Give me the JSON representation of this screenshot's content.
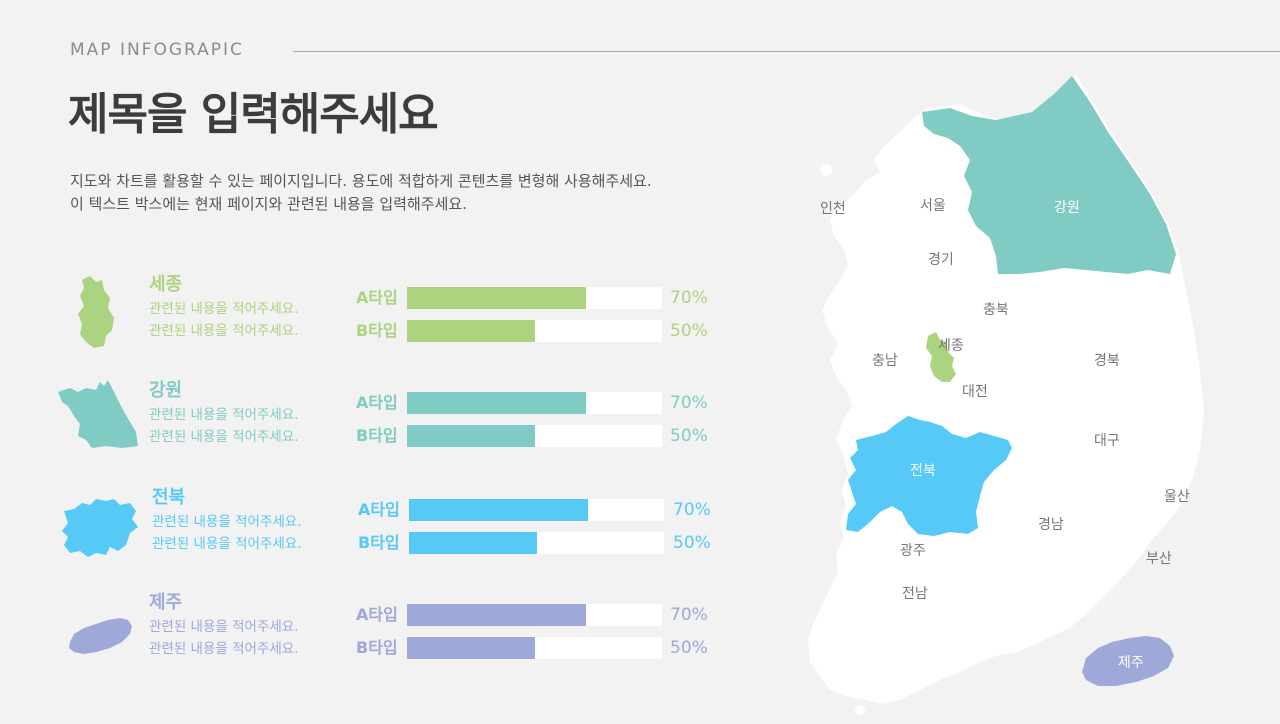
{
  "header": {
    "label": "MAP INFOGRAPIC",
    "title": "제목을 입력해주세요",
    "description_1": "지도와 차트를 활용할 수 있는 페이지입니다. 용도에 적합하게 콘텐츠를 변형해 사용해주세요.",
    "description_2": "이 텍스트 박스에는 현재 페이지와 관련된 내용을 입력해주세요."
  },
  "regions": [
    {
      "name": "세종",
      "color": "#acd37f",
      "line1": "관련된 내용을 적어주세요.",
      "line2": "관련된 내용을 적어주세요.",
      "bars": [
        {
          "label": "A타입",
          "value": 70,
          "pct": "70%"
        },
        {
          "label": "B타입",
          "value": 50,
          "pct": "50%"
        }
      ]
    },
    {
      "name": "강원",
      "color": "#80cbc3",
      "line1": "관련된 내용을 적어주세요.",
      "line2": "관련된 내용을 적어주세요.",
      "bars": [
        {
          "label": "A타입",
          "value": 70,
          "pct": "70%"
        },
        {
          "label": "B타입",
          "value": 50,
          "pct": "50%"
        }
      ]
    },
    {
      "name": "전북",
      "color": "#56c9f6",
      "line1": "관련된 내용을 적어주세요.",
      "line2": "관련된 내용을 적어주세요.",
      "bars": [
        {
          "label": "A타입",
          "value": 70,
          "pct": "70%"
        },
        {
          "label": "B타입",
          "value": 50,
          "pct": "50%"
        }
      ]
    },
    {
      "name": "제주",
      "color": "#9ea8d9",
      "line1": "관련된 내용을 적어주세요.",
      "line2": "관련된 내용을 적어주세요.",
      "bars": [
        {
          "label": "A타입",
          "value": 70,
          "pct": "70%"
        },
        {
          "label": "B타입",
          "value": 50,
          "pct": "50%"
        }
      ]
    }
  ],
  "map_labels": {
    "incheon": "인천",
    "seoul": "서울",
    "gangwon": "강원",
    "gyeonggi": "경기",
    "chungbuk": "충북",
    "chungnam": "충남",
    "sejong": "세종",
    "daejeon": "대전",
    "gyeongbuk": "경북",
    "daegu": "대구",
    "jeonbuk": "전북",
    "ulsan": "울산",
    "gyeongnam": "경남",
    "gwangju": "광주",
    "busan": "부산",
    "jeonnam": "전남",
    "jeju": "제주"
  },
  "map_colors": {
    "land": "#ffffff",
    "sejong": "#acd37f",
    "gangwon": "#80cbc3",
    "jeonbuk": "#56c9f6",
    "jeju": "#9ea8d9"
  }
}
